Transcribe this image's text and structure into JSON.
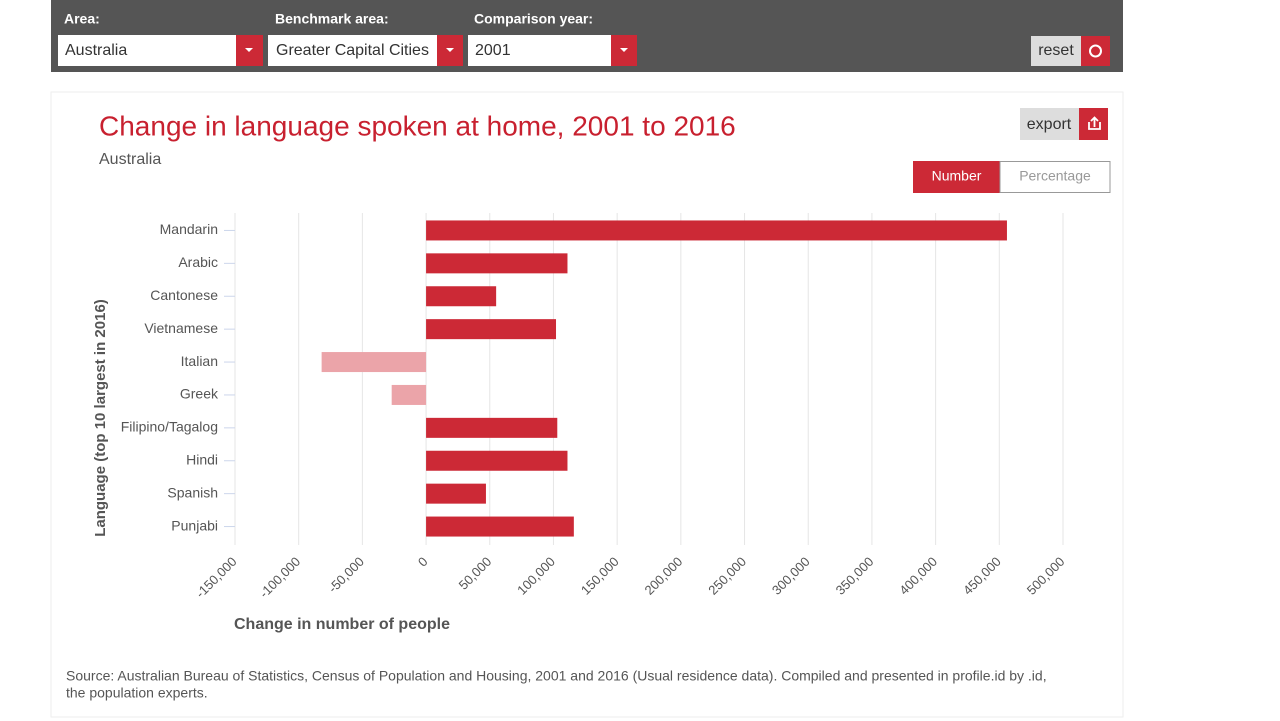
{
  "controls": {
    "area_label": "Area:",
    "area_value": "Australia",
    "benchmark_label": "Benchmark area:",
    "benchmark_value": "Greater Capital Cities",
    "year_label": "Comparison year:",
    "year_value": "2001",
    "reset": "reset",
    "export": "export",
    "toggle": [
      "Number",
      "Percentage"
    ]
  },
  "chart_data": {
    "type": "hbar",
    "title": "Change in language spoken at home, 2001 to 2016",
    "subtitle": "Australia",
    "ylabel": "Language (top 10 largest in 2016)",
    "xlabel": "Change in number of people",
    "categories": [
      "Mandarin",
      "Arabic",
      "Cantonese",
      "Vietnamese",
      "Italian",
      "Greek",
      "Filipino/Tagalog",
      "Hindi",
      "Spanish",
      "Punjabi"
    ],
    "values": [
      456000,
      111000,
      55000,
      102000,
      -82000,
      -27000,
      103000,
      111000,
      47000,
      116000
    ],
    "color": "#cc2936",
    "negative_color": "#eba4a9",
    "xlim": [
      -150000,
      500000
    ],
    "xticks": [
      {
        "value": -150000,
        "label": "-150,000"
      },
      {
        "value": -100000,
        "label": "-100,000"
      },
      {
        "value": -50000,
        "label": "-50,000"
      },
      0,
      {
        "value": 50000,
        "label": "50,000"
      },
      {
        "value": 100000,
        "label": "100,000"
      },
      {
        "value": 150000,
        "label": "150,000"
      },
      {
        "value": 200000,
        "label": "200,000"
      },
      {
        "value": 250000,
        "label": "250,000"
      },
      {
        "value": 300000,
        "label": "300,000"
      },
      {
        "value": 350000,
        "label": "350,000"
      },
      {
        "value": 400000,
        "label": "400,000"
      },
      {
        "value": 450000,
        "label": "450,000"
      },
      {
        "value": 500000,
        "label": "500,000"
      }
    ],
    "grid": true
  },
  "source": "Source: Australian Bureau of Statistics, Census of Population and Housing, 2001 and 2016 (Usual residence data). Compiled and presented in profile.id by .id,",
  "source_line2": "the population experts."
}
